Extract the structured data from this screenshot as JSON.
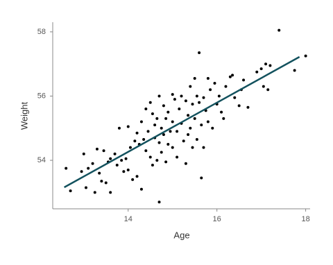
{
  "chart_data": {
    "type": "scatter",
    "xlabel": "Age",
    "ylabel": "Weight",
    "x": [
      12.6,
      12.7,
      12.95,
      13.0,
      13.05,
      13.1,
      13.2,
      13.25,
      13.3,
      13.35,
      13.4,
      13.45,
      13.5,
      13.55,
      13.6,
      13.6,
      13.7,
      13.75,
      13.8,
      13.85,
      13.9,
      13.95,
      14.0,
      14.0,
      14.05,
      14.1,
      14.15,
      14.2,
      14.2,
      14.25,
      14.3,
      14.3,
      14.35,
      14.4,
      14.4,
      14.45,
      14.5,
      14.5,
      14.55,
      14.55,
      14.6,
      14.6,
      14.65,
      14.65,
      14.7,
      14.7,
      14.7,
      14.75,
      14.75,
      14.8,
      14.8,
      14.85,
      14.85,
      14.9,
      14.9,
      14.95,
      15.0,
      15.0,
      15.0,
      15.05,
      15.1,
      15.1,
      15.15,
      15.2,
      15.2,
      15.25,
      15.3,
      15.3,
      15.35,
      15.35,
      15.4,
      15.4,
      15.45,
      15.45,
      15.5,
      15.5,
      15.55,
      15.55,
      15.6,
      15.6,
      15.65,
      15.65,
      15.7,
      15.7,
      15.75,
      15.8,
      15.8,
      15.85,
      15.9,
      15.95,
      16.0,
      16.05,
      16.1,
      16.15,
      16.2,
      16.3,
      16.35,
      16.4,
      16.5,
      16.55,
      16.6,
      16.7,
      16.9,
      17.0,
      17.05,
      17.1,
      17.15,
      17.2,
      17.4,
      17.75,
      18.0
    ],
    "values": [
      53.75,
      53.05,
      53.65,
      54.2,
      53.15,
      53.75,
      53.9,
      53.0,
      54.35,
      53.6,
      53.35,
      54.3,
      53.3,
      53.95,
      54.05,
      53.0,
      54.2,
      53.85,
      55.0,
      54.0,
      53.65,
      54.05,
      55.05,
      53.7,
      54.4,
      53.4,
      54.6,
      54.85,
      53.5,
      54.5,
      55.2,
      53.1,
      54.65,
      55.6,
      54.3,
      54.9,
      55.8,
      54.1,
      55.45,
      53.85,
      55.1,
      54.7,
      55.3,
      54.0,
      56.0,
      54.55,
      52.7,
      55.0,
      54.25,
      55.7,
      54.8,
      55.3,
      53.95,
      54.5,
      55.5,
      54.9,
      56.05,
      55.2,
      54.4,
      55.9,
      54.9,
      54.1,
      55.6,
      55.15,
      56.0,
      54.6,
      55.85,
      53.9,
      55.4,
      54.8,
      56.3,
      55.0,
      55.75,
      54.4,
      56.55,
      55.3,
      54.65,
      56.0,
      57.35,
      55.8,
      55.1,
      53.45,
      55.95,
      54.4,
      55.55,
      56.55,
      55.2,
      56.2,
      55.0,
      56.4,
      55.75,
      56.0,
      55.5,
      55.3,
      56.3,
      56.6,
      56.65,
      55.95,
      55.7,
      56.2,
      56.5,
      55.65,
      56.75,
      56.85,
      56.3,
      57.0,
      56.2,
      56.95,
      58.05,
      56.8,
      57.25
    ],
    "color": "#000000",
    "fit": {
      "x": [
        12.56,
        17.86
      ],
      "values": [
        53.16,
        57.22
      ],
      "color": "#13525e"
    },
    "xlim": [
      12.3,
      18.1
    ],
    "ylim": [
      52.49,
      58.3
    ],
    "xticks": [
      14,
      16,
      18
    ],
    "yticks": [
      54,
      56,
      58
    ]
  }
}
